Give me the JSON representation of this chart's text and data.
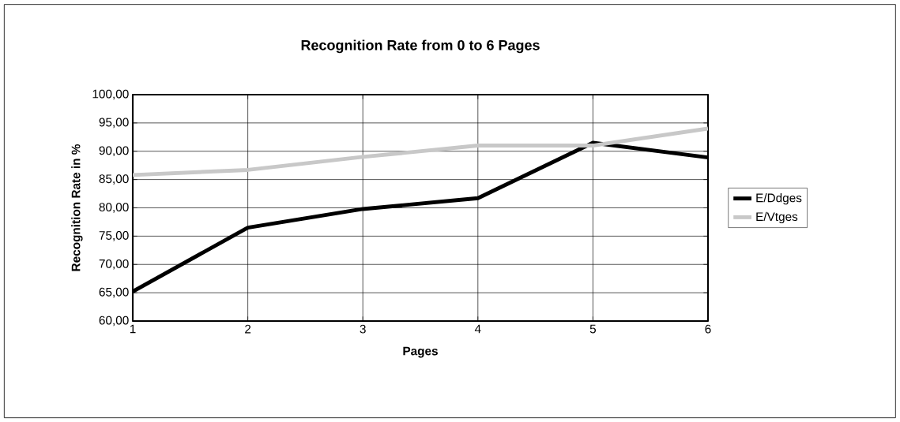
{
  "chart_data": {
    "type": "line",
    "title": "Recognition Rate from 0 to 6 Pages",
    "xlabel": "Pages",
    "ylabel": "Recognition Rate in %",
    "x": [
      1,
      2,
      3,
      4,
      5,
      6
    ],
    "series": [
      {
        "name": "E/Ddges",
        "color": "#000000",
        "values": [
          65.2,
          76.5,
          79.8,
          81.7,
          91.5,
          88.9
        ]
      },
      {
        "name": "E/Vtges",
        "color": "#c8c8c8",
        "values": [
          85.8,
          86.7,
          89.0,
          91.0,
          91.0,
          94.0
        ]
      }
    ],
    "xlim": [
      1,
      6
    ],
    "xticks": [
      1,
      2,
      3,
      4,
      5,
      6
    ],
    "ylim": [
      60,
      100
    ],
    "yticks": [
      {
        "value": 60,
        "label": "60,00"
      },
      {
        "value": 65,
        "label": "65,00"
      },
      {
        "value": 70,
        "label": "70,00"
      },
      {
        "value": 75,
        "label": "75,00"
      },
      {
        "value": 80,
        "label": "80,00"
      },
      {
        "value": 85,
        "label": "85,00"
      },
      {
        "value": 90,
        "label": "90,00"
      },
      {
        "value": 95,
        "label": "95,00"
      },
      {
        "value": 100,
        "label": "100,00"
      }
    ],
    "grid": true,
    "legend": "right",
    "marker": "none",
    "line_style": "solid"
  }
}
